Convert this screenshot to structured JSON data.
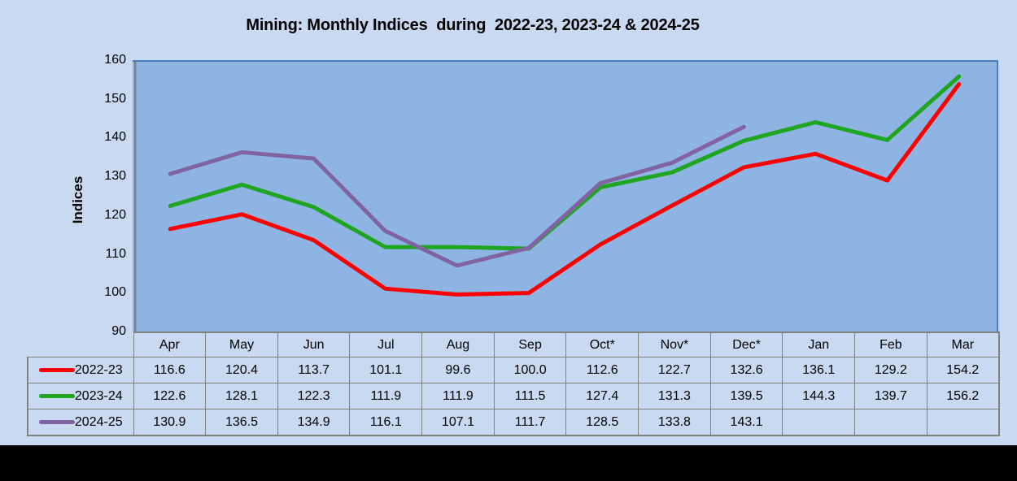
{
  "chart": {
    "title": "Mining: Monthly Indices  during  2022-23, 2023-24 & 2024-25",
    "y_axis_label": "Indices"
  },
  "chart_data": {
    "type": "line",
    "categories": [
      "Apr",
      "May",
      "Jun",
      "Jul",
      "Aug",
      "Sep",
      "Oct*",
      "Nov*",
      "Dec*",
      "Jan",
      "Feb",
      "Mar"
    ],
    "series": [
      {
        "name": "2022-23",
        "color": "#FF0000",
        "values": [
          116.6,
          120.4,
          113.7,
          101.1,
          99.6,
          100.0,
          112.6,
          122.7,
          132.6,
          136.1,
          129.2,
          154.2
        ]
      },
      {
        "name": "2023-24",
        "color": "#1FA51F",
        "values": [
          122.6,
          128.1,
          122.3,
          111.9,
          111.9,
          111.5,
          127.4,
          131.3,
          139.5,
          144.3,
          139.7,
          156.2
        ]
      },
      {
        "name": "2024-25",
        "color": "#8064A2",
        "values": [
          130.9,
          136.5,
          134.9,
          116.1,
          107.1,
          111.7,
          128.5,
          133.8,
          143.1,
          null,
          null,
          null
        ]
      }
    ],
    "ylim": [
      90,
      160
    ],
    "yticks": [
      90,
      100,
      110,
      120,
      130,
      140,
      150,
      160
    ],
    "grid": false,
    "legend_position": "table-left",
    "value_decimals": 1
  },
  "colors": {
    "canvas_bg": "#C9D9F1",
    "plot_bg": "#8DB4E2",
    "plot_border": "#4A7EBB",
    "axis_line": "#7F7F7F",
    "table_border": "#808080",
    "text": "#000000",
    "bottom_band": "#000000"
  }
}
